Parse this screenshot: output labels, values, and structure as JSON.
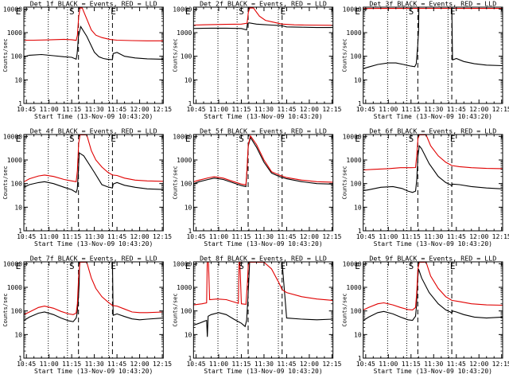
{
  "colors": {
    "events": "#000000",
    "lld": "#e00000",
    "axis": "#000000",
    "background": "#ffffff"
  },
  "common": {
    "xlabel": "Start Time (13-Nov-09 10:43:20)",
    "ylabel": "Counts/sec",
    "x_tick_labels": [
      "10:45",
      "11:00",
      "11:15",
      "11:30",
      "11:45",
      "12:00",
      "12:15"
    ],
    "x_tick_minutes": [
      10.0,
      25.0,
      40.0,
      55.0,
      70.0,
      85.0,
      100.0
    ],
    "x_minor_every_minutes": 5,
    "xlim_minutes": [
      8.33,
      100.67
    ],
    "y_tick_labels": [
      "1",
      "10",
      "100",
      "1000",
      "10000"
    ],
    "ylim": [
      1,
      12000
    ],
    "y_scale": "log",
    "marker_labels": [
      "E",
      "S",
      "E"
    ],
    "marker_style": [
      "dotted",
      "dashed",
      "dotted",
      "dashed",
      "dotted"
    ],
    "dotted_lines_minutes": [
      24.5,
      37.2,
      64.5
    ],
    "dashed_lines_minutes": [
      44.5,
      67.0
    ]
  },
  "chart_data": [
    {
      "type": "line",
      "title": "Det 1f BLACK = Events, RED = LLD",
      "yscale": "log",
      "ylim": [
        1,
        12000
      ],
      "series": [
        {
          "name": "Events",
          "color": "#000000",
          "x": [
            8.5,
            12,
            20,
            28,
            35,
            40,
            43,
            43.6,
            44.5,
            46,
            50,
            55,
            58,
            61,
            64,
            67,
            67.5,
            70,
            75,
            82,
            90,
            100.5
          ],
          "y": [
            95,
            110,
            118,
            105,
            95,
            90,
            75,
            130,
            700,
            1800,
            700,
            150,
            95,
            80,
            74,
            72,
            130,
            145,
            100,
            85,
            78,
            75
          ]
        },
        {
          "name": "LLD",
          "color": "#e00000",
          "x": [
            8.5,
            15,
            25,
            35,
            40,
            43,
            43.8,
            44.6,
            45.5,
            47,
            50,
            53,
            56,
            60,
            65,
            70,
            80,
            90,
            100.5
          ],
          "y": [
            480,
            480,
            495,
            520,
            500,
            470,
            760,
            4500,
            11000,
            11000,
            3800,
            1300,
            780,
            620,
            520,
            480,
            460,
            450,
            450
          ]
        }
      ]
    },
    {
      "type": "line",
      "title": "Det 2f BLACK = Events, RED = LLD",
      "yscale": "log",
      "ylim": [
        1,
        12000
      ],
      "series": [
        {
          "name": "Events",
          "color": "#000000",
          "x": [
            8.5,
            20,
            30,
            40,
            43.5,
            44,
            45,
            50,
            55,
            60,
            65,
            67,
            70,
            80,
            90,
            100.5
          ],
          "y": [
            1500,
            1550,
            1550,
            1500,
            1300,
            2400,
            2600,
            2300,
            2200,
            2100,
            2000,
            1950,
            1750,
            1700,
            1650,
            1650
          ]
        },
        {
          "name": "LLD",
          "color": "#e00000",
          "x": [
            8.5,
            20,
            30,
            40,
            43.8,
            44.6,
            45.5,
            48,
            52,
            56,
            62,
            67,
            75,
            85,
            100.5
          ],
          "y": [
            2100,
            2200,
            2250,
            2300,
            2500,
            7000,
            11000,
            11000,
            5000,
            3300,
            2700,
            2300,
            2150,
            2100,
            2050
          ]
        }
      ]
    },
    {
      "type": "line",
      "title": "Det 3f BLACK = Events, RED = LLD",
      "yscale": "log",
      "ylim": [
        1,
        12000
      ],
      "series": [
        {
          "name": "Events",
          "color": "#000000",
          "x": [
            8.5,
            12,
            18,
            25,
            30,
            35,
            40,
            42.5,
            43.5,
            44.5,
            45,
            45.2,
            60,
            62,
            64.5,
            67,
            67.5,
            70,
            75,
            82,
            90,
            100.5
          ],
          "y": [
            30,
            35,
            45,
            52,
            52,
            45,
            38,
            36,
            48,
            300,
            1200,
            12000,
            12000,
            12000,
            12000,
            12000,
            70,
            80,
            60,
            48,
            42,
            40
          ]
        },
        {
          "name": "LLD",
          "color": "#e00000",
          "x": [
            8.5,
            20,
            40,
            60,
            80,
            100.5
          ],
          "y": [
            10500,
            10600,
            10700,
            10700,
            10600,
            10600
          ]
        }
      ]
    },
    {
      "type": "line",
      "title": "Det 4f BLACK = Events, RED = LLD",
      "yscale": "log",
      "ylim": [
        1,
        12000
      ],
      "series": [
        {
          "name": "Events",
          "color": "#000000",
          "x": [
            8.5,
            12,
            18,
            22,
            28,
            35,
            40,
            43,
            43.7,
            44.5,
            45,
            48,
            55,
            60,
            64,
            67,
            67.5,
            70,
            75,
            82,
            90,
            100.5
          ],
          "y": [
            70,
            90,
            110,
            120,
            100,
            70,
            55,
            42,
            60,
            400,
            2000,
            1500,
            300,
            90,
            72,
            65,
            95,
            110,
            85,
            70,
            60,
            56
          ]
        },
        {
          "name": "LLD",
          "color": "#e00000",
          "x": [
            8.5,
            12,
            18,
            22,
            28,
            35,
            40,
            43,
            43.8,
            44.6,
            45.5,
            50,
            53,
            56,
            60,
            64,
            67,
            70,
            75,
            82,
            90,
            100.5
          ],
          "y": [
            120,
            160,
            210,
            230,
            200,
            150,
            130,
            120,
            350,
            5000,
            11500,
            11500,
            2500,
            1000,
            500,
            300,
            230,
            220,
            170,
            140,
            130,
            125
          ]
        }
      ]
    },
    {
      "type": "line",
      "title": "Det 5f BLACK = Events, RED = LLD",
      "yscale": "log",
      "ylim": [
        1,
        12000
      ],
      "series": [
        {
          "name": "Events",
          "color": "#000000",
          "x": [
            8.5,
            12,
            18,
            22,
            28,
            35,
            40,
            43,
            43.8,
            44.6,
            46,
            50,
            55,
            60,
            65,
            70,
            80,
            90,
            100.5
          ],
          "y": [
            100,
            120,
            150,
            170,
            150,
            105,
            82,
            75,
            400,
            4000,
            9000,
            3500,
            800,
            280,
            200,
            160,
            120,
            100,
            95
          ]
        },
        {
          "name": "LLD",
          "color": "#e00000",
          "x": [
            8.5,
            12,
            18,
            22,
            28,
            35,
            40,
            43,
            43.8,
            44.6,
            46,
            50,
            55,
            60,
            65,
            70,
            80,
            90,
            100.5
          ],
          "y": [
            120,
            140,
            175,
            195,
            170,
            120,
            95,
            88,
            450,
            4500,
            10500,
            4500,
            1000,
            320,
            230,
            180,
            140,
            120,
            115
          ]
        }
      ]
    },
    {
      "type": "line",
      "title": "Det 6f BLACK = Events, RED = LLD",
      "yscale": "log",
      "ylim": [
        1,
        12000
      ],
      "series": [
        {
          "name": "Events",
          "color": "#000000",
          "x": [
            8.5,
            12,
            20,
            28,
            34,
            38,
            41,
            43,
            43.8,
            44.6,
            45.5,
            47,
            52,
            58,
            63,
            66,
            67,
            67.5,
            72,
            80,
            90,
            100.5
          ],
          "y": [
            50,
            55,
            70,
            75,
            62,
            48,
            42,
            48,
            140,
            1500,
            4000,
            3000,
            700,
            200,
            110,
            90,
            80,
            95,
            90,
            75,
            65,
            60
          ]
        },
        {
          "name": "LLD",
          "color": "#e00000",
          "x": [
            8.5,
            15,
            25,
            33,
            40,
            43,
            43.8,
            44.6,
            45.5,
            50,
            53,
            58,
            63,
            67,
            72,
            80,
            90,
            100.5
          ],
          "y": [
            380,
            400,
            430,
            470,
            470,
            480,
            1500,
            8000,
            11500,
            11500,
            4000,
            1500,
            800,
            580,
            520,
            470,
            440,
            430
          ]
        }
      ]
    },
    {
      "type": "line",
      "title": "Det 7f BLACK = Events, RED = LLD",
      "yscale": "log",
      "ylim": [
        1,
        12000
      ],
      "series": [
        {
          "name": "Events",
          "color": "#000000",
          "x": [
            8.5,
            12,
            18,
            22,
            28,
            33,
            38,
            41,
            43,
            43.6,
            44.5,
            45,
            45.2,
            60,
            64,
            67,
            67.5,
            70,
            75,
            80,
            85,
            90,
            100.5
          ],
          "y": [
            40,
            55,
            80,
            90,
            70,
            50,
            38,
            35,
            50,
            80,
            400,
            1500,
            12000,
            12000,
            12000,
            12000,
            65,
            75,
            58,
            46,
            42,
            45,
            50
          ]
        },
        {
          "name": "LLD",
          "color": "#e00000",
          "x": [
            8.5,
            12,
            18,
            22,
            28,
            33,
            38,
            41,
            43,
            43.8,
            44.6,
            45.5,
            50,
            53,
            56,
            60,
            64,
            67,
            70,
            75,
            80,
            85,
            90,
            100.5
          ],
          "y": [
            70,
            90,
            140,
            160,
            130,
            95,
            75,
            70,
            80,
            200,
            3000,
            11500,
            11500,
            2500,
            900,
            400,
            240,
            170,
            160,
            120,
            90,
            85,
            85,
            90
          ]
        }
      ]
    },
    {
      "type": "line",
      "title": "Det 8f BLACK = Events, RED = LLD",
      "yscale": "log",
      "ylim": [
        1,
        12000
      ],
      "series": [
        {
          "name": "Events",
          "color": "#000000",
          "x": [
            8.5,
            12,
            17,
            17.5,
            18,
            20,
            25,
            30,
            35,
            40,
            42.5,
            43.5,
            44.5,
            45.5,
            48,
            55,
            60,
            62,
            64,
            67,
            70,
            80,
            90,
            100.5
          ],
          "y": [
            25,
            30,
            40,
            8,
            60,
            70,
            85,
            70,
            45,
            30,
            22,
            40,
            500,
            12000,
            12000,
            12000,
            12000,
            12000,
            12000,
            12000,
            50,
            45,
            42,
            45
          ]
        },
        {
          "name": "LLD",
          "color": "#e00000",
          "x": [
            8.5,
            14,
            17,
            17.4,
            18.2,
            19,
            24,
            30,
            35,
            38,
            38.5,
            39,
            40,
            43,
            44,
            44.6,
            45.5,
            50,
            55,
            60,
            65,
            67,
            70,
            80,
            90,
            100.5
          ],
          "y": [
            180,
            200,
            220,
            12000,
            12000,
            300,
            320,
            300,
            240,
            210,
            12000,
            12000,
            200,
            190,
            1500,
            9000,
            11500,
            11500,
            11500,
            6000,
            1500,
            800,
            600,
            400,
            320,
            280
          ]
        }
      ]
    },
    {
      "type": "line",
      "title": "Det 9f BLACK = Events, RED = LLD",
      "yscale": "log",
      "ylim": [
        1,
        12000
      ],
      "series": [
        {
          "name": "Events",
          "color": "#000000",
          "x": [
            8.5,
            12,
            18,
            22,
            28,
            33,
            38,
            41,
            43,
            43.6,
            44.4,
            45,
            47,
            52,
            58,
            63,
            66,
            67,
            67.5,
            70,
            75,
            82,
            90,
            100.5
          ],
          "y": [
            40,
            55,
            85,
            95,
            75,
            55,
            42,
            40,
            60,
            150,
            2000,
            6000,
            2500,
            600,
            200,
            110,
            90,
            80,
            100,
            90,
            70,
            55,
            50,
            55
          ]
        },
        {
          "name": "LLD",
          "color": "#e00000",
          "x": [
            8.5,
            12,
            18,
            22,
            28,
            33,
            38,
            41,
            43,
            43.8,
            44.6,
            45.5,
            50,
            53,
            58,
            63,
            67,
            72,
            80,
            90,
            100.5
          ],
          "y": [
            110,
            140,
            200,
            220,
            180,
            140,
            115,
            110,
            140,
            600,
            6000,
            11500,
            11500,
            3000,
            900,
            400,
            280,
            250,
            200,
            180,
            175
          ]
        }
      ]
    }
  ]
}
